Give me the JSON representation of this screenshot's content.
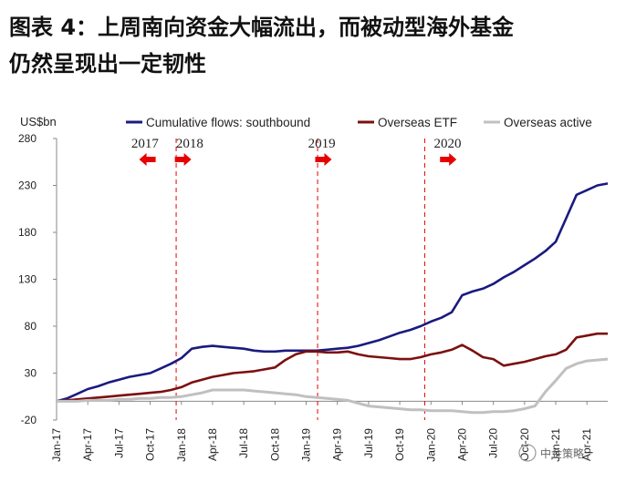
{
  "title_line1": "图表 4：上周南向资金大幅流出，而被动型海外基金",
  "title_line2": "仍然呈现出一定韧性",
  "watermark": "中金策略",
  "colors": {
    "southbound": "#1a1a80",
    "etf": "#7b1010",
    "active": "#c0c0c0",
    "annotation": "#e60000"
  },
  "chart_data": {
    "type": "line",
    "ylabel": "US$bn",
    "ylim": [
      -20,
      280
    ],
    "yticks": [
      -20,
      30,
      80,
      130,
      180,
      230,
      280
    ],
    "xlim": [
      0,
      51
    ],
    "xticks": [
      {
        "label": "Jan-17",
        "pos": 0
      },
      {
        "label": "Apr-17",
        "pos": 3
      },
      {
        "label": "Jul-17",
        "pos": 6
      },
      {
        "label": "Oct-17",
        "pos": 9
      },
      {
        "label": "Jan-18",
        "pos": 12
      },
      {
        "label": "Apr-18",
        "pos": 15
      },
      {
        "label": "Jul-18",
        "pos": 18
      },
      {
        "label": "Oct-18",
        "pos": 21
      },
      {
        "label": "Jan-19",
        "pos": 24
      },
      {
        "label": "Apr-19",
        "pos": 27
      },
      {
        "label": "Jul-19",
        "pos": 30
      },
      {
        "label": "Oct-19",
        "pos": 33
      },
      {
        "label": "Jan-20",
        "pos": 36
      },
      {
        "label": "Apr-20",
        "pos": 39
      },
      {
        "label": "Jul-20",
        "pos": 42
      },
      {
        "label": "Oct-20",
        "pos": 45
      },
      {
        "label": "Jan-21",
        "pos": 48
      },
      {
        "label": "Apr-21",
        "pos": 51
      }
    ],
    "legend_position": "top",
    "series": [
      {
        "name": "Cumulative flows: southbound",
        "key": "southbound",
        "x": [
          0,
          1,
          2,
          3,
          4,
          5,
          6,
          7,
          8,
          9,
          10,
          11,
          12,
          13,
          14,
          15,
          16,
          17,
          18,
          19,
          20,
          21,
          22,
          23,
          24,
          25,
          26,
          27,
          28,
          29,
          30,
          31,
          32,
          33,
          34,
          35,
          36,
          37,
          38,
          39,
          40,
          41,
          42,
          43,
          44,
          45,
          46,
          47,
          48,
          49,
          50,
          51,
          52,
          53
        ],
        "y": [
          0,
          3,
          8,
          13,
          16,
          20,
          23,
          26,
          28,
          30,
          35,
          40,
          46,
          56,
          58,
          59,
          58,
          57,
          56,
          54,
          53,
          53,
          54,
          54,
          54,
          54,
          55,
          56,
          57,
          59,
          62,
          65,
          69,
          73,
          76,
          80,
          85,
          89,
          95,
          113,
          117,
          120,
          125,
          132,
          138,
          145,
          152,
          160,
          170,
          195,
          220,
          225,
          230,
          232
        ]
      },
      {
        "name": "Overseas ETF",
        "key": "etf",
        "x": [
          0,
          1,
          2,
          3,
          4,
          5,
          6,
          7,
          8,
          9,
          10,
          11,
          12,
          13,
          14,
          15,
          16,
          17,
          18,
          19,
          20,
          21,
          22,
          23,
          24,
          25,
          26,
          27,
          28,
          29,
          30,
          31,
          32,
          33,
          34,
          35,
          36,
          37,
          38,
          39,
          40,
          41,
          42,
          43,
          44,
          45,
          46,
          47,
          48,
          49,
          50,
          51,
          52,
          53
        ],
        "y": [
          0,
          1,
          2,
          3,
          4,
          5,
          6,
          7,
          8,
          9,
          10,
          12,
          15,
          20,
          23,
          26,
          28,
          30,
          31,
          32,
          34,
          36,
          44,
          50,
          53,
          53,
          52,
          52,
          53,
          50,
          48,
          47,
          46,
          45,
          45,
          47,
          50,
          52,
          55,
          60,
          54,
          47,
          45,
          38,
          40,
          42,
          45,
          48,
          50,
          55,
          68,
          70,
          72,
          72
        ]
      },
      {
        "name": "Overseas active",
        "key": "active",
        "x": [
          0,
          1,
          2,
          3,
          4,
          5,
          6,
          7,
          8,
          9,
          10,
          11,
          12,
          13,
          14,
          15,
          16,
          17,
          18,
          19,
          20,
          21,
          22,
          23,
          24,
          25,
          26,
          27,
          28,
          29,
          30,
          31,
          32,
          33,
          34,
          35,
          36,
          37,
          38,
          39,
          40,
          41,
          42,
          43,
          44,
          45,
          46,
          47,
          48,
          49,
          50,
          51,
          52,
          53
        ],
        "y": [
          0,
          0,
          0,
          1,
          1,
          1,
          2,
          2,
          3,
          3,
          4,
          4,
          5,
          7,
          9,
          12,
          12,
          12,
          12,
          11,
          10,
          9,
          8,
          7,
          5,
          4,
          3,
          2,
          1,
          -2,
          -5,
          -6,
          -7,
          -8,
          -9,
          -9,
          -10,
          -10,
          -10,
          -11,
          -12,
          -12,
          -11,
          -11,
          -10,
          -8,
          -5,
          10,
          22,
          35,
          40,
          43,
          44,
          45
        ]
      }
    ],
    "annotations": [
      {
        "label": "2017",
        "label_pos": 8.5,
        "arrow": "left",
        "arrow_pos": 9
      },
      {
        "label": "2018",
        "label_pos": 12.8,
        "arrow": "right",
        "arrow_pos": 11.9,
        "line": 11.5
      },
      {
        "label": "2019",
        "label_pos": 25.5,
        "arrow": "right",
        "arrow_pos": 25.4,
        "line": 25.1
      },
      {
        "label": "2020",
        "label_pos": 37.6,
        "arrow": "right",
        "arrow_pos": 37.4,
        "line": 35.4
      }
    ]
  }
}
